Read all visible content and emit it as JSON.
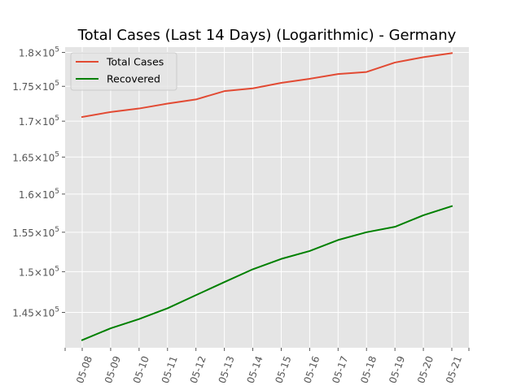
{
  "chart_data": {
    "type": "line",
    "title": "Total Cases (Last 14 Days) (Logarithmic) - Germany",
    "xlabel": "",
    "ylabel": "",
    "yscale": "log",
    "grid": true,
    "legend_position": "top-left",
    "x": [
      "05-08",
      "05-09",
      "05-10",
      "05-11",
      "05-12",
      "05-13",
      "05-14",
      "05-15",
      "05-16",
      "05-17",
      "05-18",
      "05-19",
      "05-20",
      "05-21"
    ],
    "xtick_labels": [
      "05-08",
      "05-09",
      "05-10",
      "05-11",
      "05-12",
      "05-13",
      "05-14",
      "05-15",
      "05-16",
      "05-17",
      "05-18",
      "05-19",
      "05-20",
      "05-21"
    ],
    "ylim": [
      140800,
      180800
    ],
    "yticks": [
      145000,
      150000,
      155000,
      160000,
      165000,
      170000,
      175000,
      180000
    ],
    "ytick_labels": [
      {
        "mantissa": "1.45",
        "base": "10",
        "exp": "5"
      },
      {
        "mantissa": "1.5",
        "base": "10",
        "exp": "5"
      },
      {
        "mantissa": "1.55",
        "base": "10",
        "exp": "5"
      },
      {
        "mantissa": "1.6",
        "base": "10",
        "exp": "5"
      },
      {
        "mantissa": "1.65",
        "base": "10",
        "exp": "5"
      },
      {
        "mantissa": "1.7",
        "base": "10",
        "exp": "5"
      },
      {
        "mantissa": "1.75",
        "base": "10",
        "exp": "5"
      },
      {
        "mantissa": "1.8",
        "base": "10",
        "exp": "5"
      }
    ],
    "series": [
      {
        "name": "Total Cases",
        "color": "#e24a33",
        "values": [
          170600,
          171300,
          171800,
          172500,
          173100,
          174300,
          174700,
          175500,
          176100,
          176800,
          177100,
          178500,
          179300,
          179900
        ]
      },
      {
        "name": "Recovered",
        "color": "#008000",
        "values": [
          141700,
          143100,
          144200,
          145500,
          147100,
          148700,
          150300,
          151600,
          152600,
          154000,
          155000,
          155700,
          157200,
          158400
        ]
      }
    ]
  }
}
